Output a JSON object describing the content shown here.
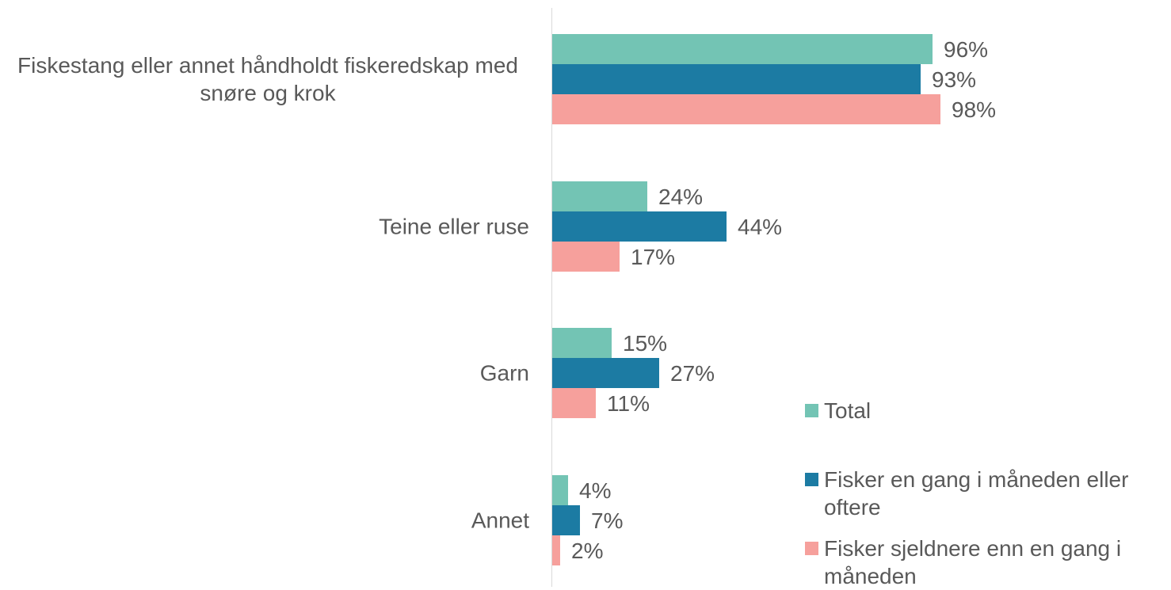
{
  "chart_data": {
    "type": "bar",
    "orientation": "horizontal",
    "categories": [
      "Fiskestang eller annet håndholdt fiskeredskap med snøre og krok",
      "Teine eller ruse",
      "Garn",
      "Annet"
    ],
    "series": [
      {
        "name": "Total",
        "color": "#73c4b4",
        "values": [
          96,
          24,
          15,
          4
        ],
        "value_labels": [
          "96%",
          "24%",
          "15%",
          "4%"
        ]
      },
      {
        "name": "Fisker en gang i måneden eller oftere",
        "color": "#1c7ba3",
        "values": [
          93,
          44,
          27,
          7
        ],
        "value_labels": [
          "93%",
          "44%",
          "27%",
          "7%"
        ]
      },
      {
        "name": "Fisker sjeldnere enn en gang i måneden",
        "color": "#f6a09c",
        "values": [
          98,
          17,
          11,
          2
        ],
        "value_labels": [
          "98%",
          "17%",
          "11%",
          "2%"
        ]
      }
    ]
  }
}
